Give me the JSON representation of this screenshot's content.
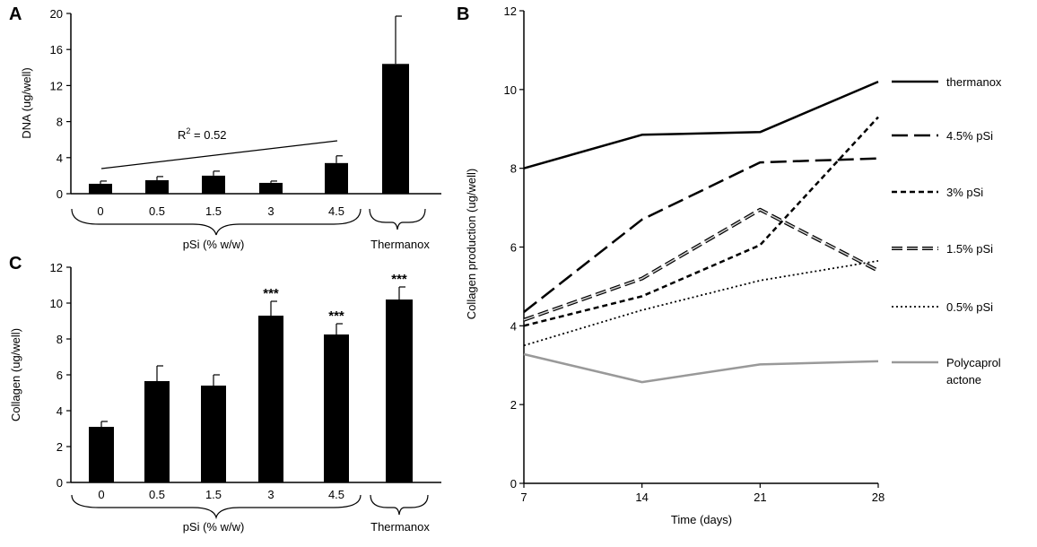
{
  "panels": {
    "a": "A",
    "b": "B",
    "c": "C"
  },
  "panel_a": {
    "ylabel": "DNA (ug/well)",
    "yticks": [
      "0",
      "4",
      "8",
      "12",
      "16",
      "20"
    ],
    "ylim": [
      0,
      20
    ],
    "categories": [
      "0",
      "0.5",
      "1.5",
      "3",
      "4.5",
      "Thermanox"
    ],
    "cat_labels": [
      "0",
      "0.5",
      "1.5",
      "3",
      "4.5"
    ],
    "values": [
      1.1,
      1.5,
      2.0,
      1.2,
      3.4,
      14.4
    ],
    "errors": [
      0.3,
      0.4,
      0.5,
      0.2,
      0.8,
      5.3
    ],
    "group_label": "pSi (% w/w)",
    "control_label": "Thermanox",
    "r2_label": "R",
    "r2_sup": "2",
    "r2_value": " = 0.52"
  },
  "panel_c": {
    "ylabel": "Collagen (ug/well)",
    "yticks": [
      "0",
      "2",
      "4",
      "6",
      "8",
      "10",
      "12"
    ],
    "ylim": [
      0,
      12
    ],
    "categories": [
      "0",
      "0.5",
      "1.5",
      "3",
      "4.5",
      "Thermanox"
    ],
    "cat_labels": [
      "0",
      "0.5",
      "1.5",
      "3",
      "4.5"
    ],
    "values": [
      3.1,
      5.65,
      5.4,
      9.3,
      8.25,
      10.2
    ],
    "errors": [
      0.3,
      0.85,
      0.6,
      0.8,
      0.6,
      0.7
    ],
    "significance": [
      "",
      "",
      "",
      "***",
      "***",
      "***"
    ],
    "group_label": "pSi (% w/w)",
    "control_label": "Thermanox"
  },
  "panel_b": {
    "ylabel": "Collagen production (ug/well)",
    "xlabel": "Time (days)",
    "yticks": [
      "0",
      "2",
      "4",
      "6",
      "8",
      "10",
      "12"
    ],
    "ylim": [
      0,
      12
    ],
    "xticks": [
      "7",
      "14",
      "21",
      "28"
    ],
    "series_names": [
      "thermanox",
      "4.5% pSi",
      "3% pSi",
      "1.5% pSi",
      "0.5% pSi"
    ],
    "pcl_label_1": "Polycaprol",
    "pcl_label_2": "actone"
  },
  "chart_data": [
    {
      "type": "bar",
      "title": "A",
      "ylabel": "DNA (ug/well)",
      "xlabel": "pSi (% w/w)",
      "categories": [
        "0",
        "0.5",
        "1.5",
        "3",
        "4.5",
        "Thermanox"
      ],
      "values": [
        1.1,
        1.5,
        2.0,
        1.2,
        3.4,
        14.4
      ],
      "errors": [
        0.3,
        0.4,
        0.5,
        0.2,
        0.8,
        5.3
      ],
      "ylim": [
        0,
        20
      ],
      "annotation": "R2 = 0.52"
    },
    {
      "type": "line",
      "title": "B",
      "xlabel": "Time (days)",
      "ylabel": "Collagen production (ug/well)",
      "x": [
        7,
        14,
        21,
        28
      ],
      "ylim": [
        0,
        12
      ],
      "series": [
        {
          "name": "thermanox",
          "x": [
            7,
            14,
            21,
            28
          ],
          "values": [
            8.0,
            8.85,
            8.92,
            10.2
          ],
          "color": "#000000",
          "style": "solid"
        },
        {
          "name": "4.5% pSi",
          "x": [
            7,
            14,
            21,
            28
          ],
          "values": [
            4.35,
            6.7,
            8.15,
            8.25
          ],
          "color": "#000000",
          "style": "long-dash"
        },
        {
          "name": "3% pSi",
          "x": [
            7,
            14,
            21,
            28
          ],
          "values": [
            4.0,
            4.75,
            6.05,
            9.3
          ],
          "color": "#000000",
          "style": "short-dash"
        },
        {
          "name": "1.5% pSi",
          "x": [
            7,
            14,
            21,
            28
          ],
          "values": [
            4.15,
            5.2,
            6.95,
            5.4
          ],
          "color": "#777777",
          "style": "outlined-dash"
        },
        {
          "name": "0.5% pSi",
          "x": [
            7,
            14,
            21,
            28
          ],
          "values": [
            3.5,
            4.4,
            5.15,
            5.65
          ],
          "color": "#000000",
          "style": "dotted"
        },
        {
          "name": "Polycaprolactone",
          "x": [
            7,
            14,
            21,
            28
          ],
          "values": [
            3.28,
            2.57,
            3.02,
            3.1
          ],
          "color": "#999999",
          "style": "solid"
        }
      ]
    },
    {
      "type": "bar",
      "title": "C",
      "ylabel": "Collagen (ug/well)",
      "xlabel": "pSi (% w/w)",
      "categories": [
        "0",
        "0.5",
        "1.5",
        "3",
        "4.5",
        "Thermanox"
      ],
      "values": [
        3.1,
        5.65,
        5.4,
        9.3,
        8.25,
        10.2
      ],
      "errors": [
        0.3,
        0.85,
        0.6,
        0.8,
        0.6,
        0.7
      ],
      "significance": [
        "",
        "",
        "",
        "***",
        "***",
        "***"
      ],
      "ylim": [
        0,
        12
      ]
    }
  ]
}
